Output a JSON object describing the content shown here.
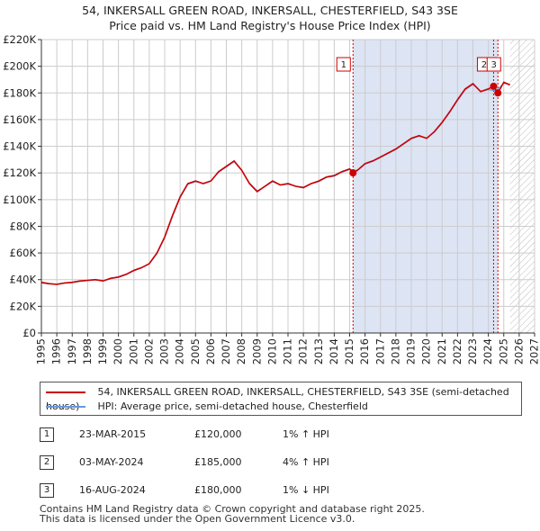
{
  "header": {
    "title_line1": "54, INKERSALL GREEN ROAD, INKERSALL, CHESTERFIELD, S43 3SE",
    "title_line2": "Price paid vs. HM Land Registry's House Price Index (HPI)"
  },
  "colors": {
    "price_line": "#cc0000",
    "hpi_line": "#6699dd",
    "shade": "#dde4f4",
    "marker_border": "#cc0000"
  },
  "chart_data": {
    "type": "line",
    "title": "Price paid vs. HM Land Registry's House Price Index (HPI)",
    "xlim": [
      1995,
      2027
    ],
    "ylim": [
      0,
      220000
    ],
    "x_ticks": [
      1995,
      1996,
      1997,
      1998,
      1999,
      2000,
      2001,
      2002,
      2003,
      2004,
      2005,
      2006,
      2007,
      2008,
      2009,
      2010,
      2011,
      2012,
      2013,
      2014,
      2015,
      2016,
      2017,
      2018,
      2019,
      2020,
      2021,
      2022,
      2023,
      2024,
      2025,
      2026,
      2027
    ],
    "x_tick_labels": [
      "1995",
      "1996",
      "1997",
      "1998",
      "1999",
      "2000",
      "2001",
      "2002",
      "2003",
      "2004",
      "2005",
      "2006",
      "2007",
      "2008",
      "2009",
      "2010",
      "2011",
      "2012",
      "2013",
      "2014",
      "2015",
      "2016",
      "2017",
      "2018",
      "2019",
      "2020",
      "2021",
      "2022",
      "2023",
      "2024",
      "2025",
      "2026",
      "2027"
    ],
    "y_ticks": [
      0,
      20000,
      40000,
      60000,
      80000,
      100000,
      120000,
      140000,
      160000,
      180000,
      200000,
      220000
    ],
    "y_tick_labels": [
      "£0",
      "£20K",
      "£40K",
      "£60K",
      "£80K",
      "£100K",
      "£120K",
      "£140K",
      "£160K",
      "£180K",
      "£200K",
      "£220K"
    ],
    "grid": true,
    "future_hatch_from": 2025.4,
    "shaded_span": [
      2015.22,
      2024.62
    ],
    "series": [
      {
        "name": "54, INKERSALL GREEN ROAD, INKERSALL, CHESTERFIELD, S43 3SE (semi-detached house)",
        "color": "#cc0000",
        "x": [
          1995.0,
          1995.5,
          1996.0,
          1996.5,
          1997.0,
          1997.5,
          1998.0,
          1998.5,
          1999.0,
          1999.5,
          2000.0,
          2000.5,
          2001.0,
          2001.5,
          2002.0,
          2002.5,
          2003.0,
          2003.5,
          2004.0,
          2004.5,
          2005.0,
          2005.5,
          2006.0,
          2006.5,
          2007.0,
          2007.5,
          2008.0,
          2008.5,
          2009.0,
          2009.5,
          2010.0,
          2010.5,
          2011.0,
          2011.5,
          2012.0,
          2012.5,
          2013.0,
          2013.5,
          2014.0,
          2014.5,
          2015.0,
          2015.22,
          2015.5,
          2016.0,
          2016.5,
          2017.0,
          2017.5,
          2018.0,
          2018.5,
          2019.0,
          2019.5,
          2020.0,
          2020.5,
          2021.0,
          2021.5,
          2022.0,
          2022.5,
          2023.0,
          2023.5,
          2024.0,
          2024.34,
          2024.62,
          2025.0,
          2025.4
        ],
        "y": [
          38000,
          37000,
          36500,
          37500,
          38000,
          39000,
          39500,
          40000,
          39000,
          41000,
          42000,
          44000,
          47000,
          49000,
          52000,
          60000,
          72000,
          88000,
          102000,
          112000,
          114000,
          112000,
          114000,
          121000,
          125000,
          129000,
          122000,
          112000,
          106000,
          110000,
          114000,
          111000,
          112000,
          110000,
          109000,
          112000,
          114000,
          117000,
          118000,
          121000,
          123000,
          120000,
          122000,
          127000,
          129000,
          132000,
          135000,
          138000,
          142000,
          146000,
          148000,
          146000,
          151000,
          158000,
          166000,
          175000,
          183000,
          187000,
          181000,
          183000,
          185000,
          180000,
          188000,
          186000
        ]
      },
      {
        "name": "HPI: Average price, semi-detached house, Chesterfield",
        "color": "#6699dd",
        "x": [
          1995.0,
          1995.5,
          1996.0,
          1996.5,
          1997.0,
          1997.5,
          1998.0,
          1998.5,
          1999.0,
          1999.5,
          2000.0,
          2000.5,
          2001.0,
          2001.5,
          2002.0,
          2002.5,
          2003.0,
          2003.5,
          2004.0,
          2004.5,
          2005.0,
          2005.5,
          2006.0,
          2006.5,
          2007.0,
          2007.5,
          2008.0,
          2008.5,
          2009.0,
          2009.5,
          2010.0,
          2010.5,
          2011.0,
          2011.5,
          2012.0,
          2012.5,
          2013.0,
          2013.5,
          2014.0,
          2014.5,
          2015.0,
          2015.5,
          2016.0,
          2016.5,
          2017.0,
          2017.5,
          2018.0,
          2018.5,
          2019.0,
          2019.5,
          2020.0,
          2020.5,
          2021.0,
          2021.5,
          2022.0,
          2022.5,
          2023.0,
          2023.5,
          2024.0,
          2024.5,
          2025.0,
          2025.4
        ],
        "y": [
          37500,
          36800,
          36700,
          37300,
          37800,
          38700,
          39300,
          39800,
          39200,
          40700,
          41800,
          43700,
          46600,
          48800,
          51800,
          59500,
          71500,
          87200,
          101500,
          111500,
          113500,
          112200,
          114200,
          120500,
          124500,
          128500,
          121800,
          112500,
          106500,
          109800,
          113500,
          111000,
          111600,
          110100,
          109300,
          111800,
          113600,
          116600,
          117600,
          120500,
          122600,
          121800,
          126600,
          128700,
          131600,
          134600,
          137600,
          141600,
          145600,
          147600,
          146200,
          150700,
          157600,
          165600,
          174400,
          182400,
          186300,
          181200,
          182500,
          181600,
          187200,
          186500
        ]
      }
    ],
    "sales": [
      {
        "label": "1",
        "x": 2015.22,
        "y": 120000
      },
      {
        "label": "2",
        "x": 2024.34,
        "y": 185000
      },
      {
        "label": "3",
        "x": 2024.62,
        "y": 180000
      }
    ]
  },
  "legend": {
    "item1": "54, INKERSALL GREEN ROAD, INKERSALL, CHESTERFIELD, S43 3SE (semi-detached house)",
    "item2": "HPI: Average price, semi-detached house, Chesterfield"
  },
  "sales_table": [
    {
      "num": "1",
      "date": "23-MAR-2015",
      "price": "£120,000",
      "hpi": "1% ↑ HPI"
    },
    {
      "num": "2",
      "date": "03-MAY-2024",
      "price": "£185,000",
      "hpi": "4% ↑ HPI"
    },
    {
      "num": "3",
      "date": "16-AUG-2024",
      "price": "£180,000",
      "hpi": "1% ↓ HPI"
    }
  ],
  "footer": {
    "line1": "Contains HM Land Registry data © Crown copyright and database right 2025.",
    "line2": "This data is licensed under the Open Government Licence v3.0."
  }
}
